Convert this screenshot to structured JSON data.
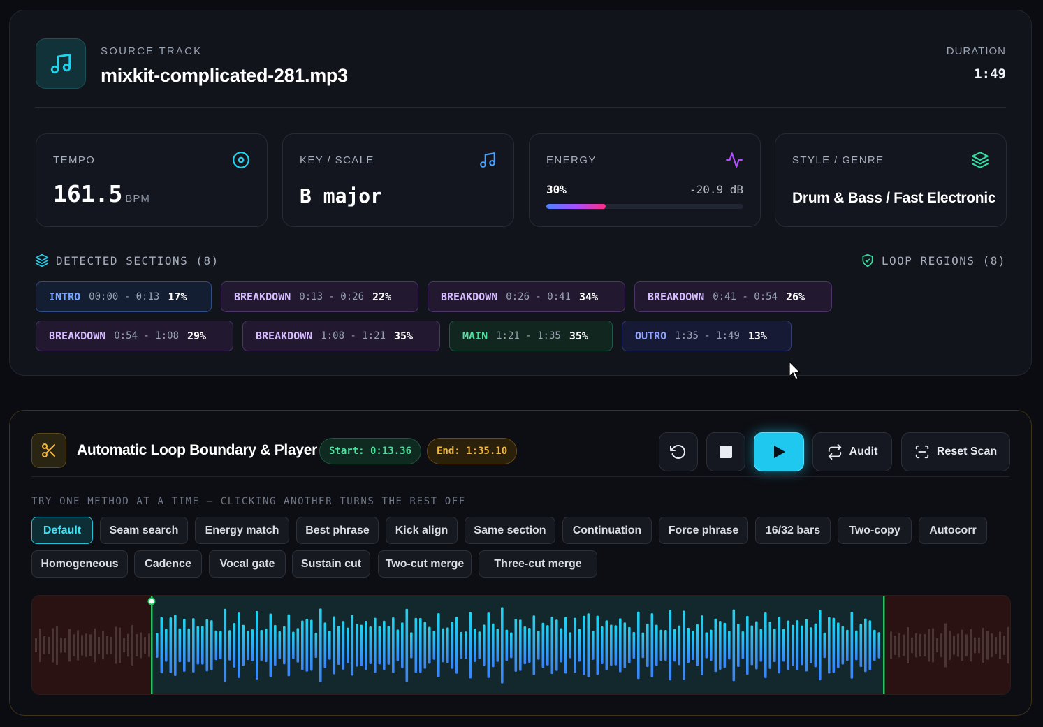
{
  "source": {
    "label": "SOURCE TRACK",
    "filename": "mixkit-complicated-281.mp3",
    "duration_label": "DURATION",
    "duration": "1:49",
    "icon": "music-note-icon"
  },
  "stats": {
    "tempo": {
      "label": "TEMPO",
      "value": "161.5",
      "unit": "BPM",
      "icon": "target-icon"
    },
    "key": {
      "label": "KEY / SCALE",
      "value": "B major",
      "icon": "music-note-icon"
    },
    "energy": {
      "label": "ENERGY",
      "percent_label": "30%",
      "percent": 30,
      "db": "-20.9 dB",
      "icon": "pulse-icon"
    },
    "genre": {
      "label": "STYLE / GENRE",
      "value": "Drum & Bass / Fast Electronic",
      "icon": "layers-icon"
    }
  },
  "sections": {
    "title": "DETECTED SECTIONS (8)",
    "loop_title": "LOOP REGIONS (8)",
    "items": [
      {
        "name": "INTRO",
        "range": "00:00 - 0:13",
        "pct": "17%",
        "color": "blue"
      },
      {
        "name": "BREAKDOWN",
        "range": "0:13 - 0:26",
        "pct": "22%",
        "color": "purple"
      },
      {
        "name": "BREAKDOWN",
        "range": "0:26 - 0:41",
        "pct": "34%",
        "color": "purple"
      },
      {
        "name": "BREAKDOWN",
        "range": "0:41 - 0:54",
        "pct": "26%",
        "color": "purple"
      },
      {
        "name": "BREAKDOWN",
        "range": "0:54 - 1:08",
        "pct": "29%",
        "color": "purple"
      },
      {
        "name": "BREAKDOWN",
        "range": "1:08 - 1:21",
        "pct": "35%",
        "color": "purple"
      },
      {
        "name": "MAIN",
        "range": "1:21 - 1:35",
        "pct": "35%",
        "color": "green"
      },
      {
        "name": "OUTRO",
        "range": "1:35 - 1:49",
        "pct": "13%",
        "color": "indigo"
      }
    ]
  },
  "player": {
    "title": "Automatic Loop Boundary & Player",
    "start": "Start: 0:13.36",
    "end": "End: 1:35.10",
    "audit_label": "Audit",
    "reset_label": "Reset Scan",
    "hint": "TRY ONE METHOD AT A TIME — CLICKING ANOTHER TURNS THE REST OFF",
    "methods_row1": [
      "Default",
      "Seam search",
      "Energy match",
      "Best phrase",
      "Kick align",
      "Same section",
      "Continuation",
      "Force phrase",
      "16/32 bars",
      "Two-copy",
      "Autocorr"
    ],
    "methods_row2": [
      "Homogeneous",
      "Cadence",
      "Vocal gate",
      "Sustain cut",
      "Two-cut merge",
      "Three-cut merge"
    ],
    "active_method": "Default"
  },
  "colors": {
    "accent": "#1ec8ef",
    "start_green": "#4fe0a0",
    "end_amber": "#f5b73b"
  }
}
